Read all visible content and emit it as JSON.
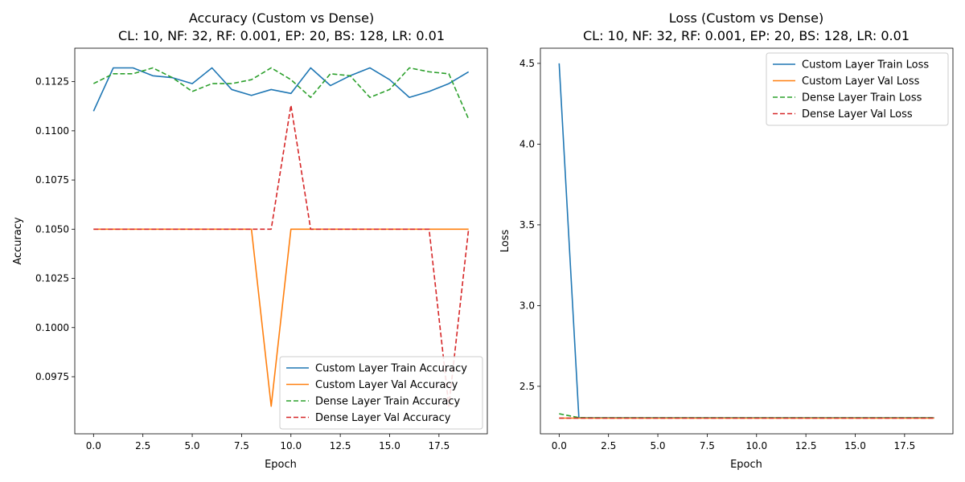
{
  "charts": [
    {
      "title_line1": "Accuracy (Custom vs Dense)",
      "title_line2": "CL: 10, NF: 32, RF: 0.001, EP: 20, BS: 128, LR: 0.01",
      "xlabel": "Epoch",
      "ylabel": "Accuracy"
    },
    {
      "title_line1": "Loss (Custom vs Dense)",
      "title_line2": "CL: 10, NF: 32, RF: 0.001, EP: 20, BS: 128, LR: 0.01",
      "xlabel": "Epoch",
      "ylabel": "Loss"
    }
  ],
  "chart_data": [
    {
      "type": "line",
      "title": "Accuracy (Custom vs Dense)\nCL: 10, NF: 32, RF: 0.001, EP: 20, BS: 128, LR: 0.01",
      "xlabel": "Epoch",
      "ylabel": "Accuracy",
      "xlim": [
        -0.95,
        19.95
      ],
      "ylim": [
        0.0946,
        0.1142
      ],
      "xticks": [
        0.0,
        2.5,
        5.0,
        7.5,
        10.0,
        12.5,
        15.0,
        17.5
      ],
      "xtick_labels": [
        "0.0",
        "2.5",
        "5.0",
        "7.5",
        "10.0",
        "12.5",
        "15.0",
        "17.5"
      ],
      "yticks": [
        0.0975,
        0.1,
        0.1025,
        0.105,
        0.1075,
        0.11,
        0.1125
      ],
      "ytick_labels": [
        "0.0975",
        "0.1000",
        "0.1025",
        "0.1050",
        "0.1075",
        "0.1100",
        "0.1125"
      ],
      "grid": false,
      "legend_position": "lower right",
      "x": [
        0,
        1,
        2,
        3,
        4,
        5,
        6,
        7,
        8,
        9,
        10,
        11,
        12,
        13,
        14,
        15,
        16,
        17,
        18,
        19
      ],
      "series": [
        {
          "name": "Custom Layer Train Accuracy",
          "color": "#1f77b4",
          "dash": "solid",
          "values": [
            0.111,
            0.1132,
            0.1132,
            0.1128,
            0.1127,
            0.1124,
            0.1132,
            0.1121,
            0.1118,
            0.1121,
            0.1119,
            0.1132,
            0.1123,
            0.1128,
            0.1132,
            0.1126,
            0.1117,
            0.112,
            0.1124,
            0.113
          ]
        },
        {
          "name": "Custom Layer Val Accuracy",
          "color": "#ff7f0e",
          "dash": "solid",
          "values": [
            0.105,
            0.105,
            0.105,
            0.105,
            0.105,
            0.105,
            0.105,
            0.105,
            0.105,
            0.096,
            0.105,
            0.105,
            0.105,
            0.105,
            0.105,
            0.105,
            0.105,
            0.105,
            0.105,
            0.105
          ]
        },
        {
          "name": "Dense Layer Train Accuracy",
          "color": "#2ca02c",
          "dash": "dashed",
          "values": [
            0.1124,
            0.1129,
            0.1129,
            0.1132,
            0.1127,
            0.112,
            0.1124,
            0.1124,
            0.1126,
            0.1132,
            0.1126,
            0.1117,
            0.1129,
            0.1128,
            0.1117,
            0.1121,
            0.1132,
            0.113,
            0.1129,
            0.1106
          ]
        },
        {
          "name": "Dense Layer Val Accuracy",
          "color": "#d62728",
          "dash": "dashed",
          "values": [
            0.105,
            0.105,
            0.105,
            0.105,
            0.105,
            0.105,
            0.105,
            0.105,
            0.105,
            0.105,
            0.1113,
            0.105,
            0.105,
            0.105,
            0.105,
            0.105,
            0.105,
            0.105,
            0.096,
            0.105
          ]
        }
      ]
    },
    {
      "type": "line",
      "title": "Loss (Custom vs Dense)\nCL: 10, NF: 32, RF: 0.001, EP: 20, BS: 128, LR: 0.01",
      "xlabel": "Epoch",
      "ylabel": "Loss",
      "xlim": [
        -0.95,
        19.95
      ],
      "ylim": [
        2.206,
        4.594
      ],
      "xticks": [
        0.0,
        2.5,
        5.0,
        7.5,
        10.0,
        12.5,
        15.0,
        17.5
      ],
      "xtick_labels": [
        "0.0",
        "2.5",
        "5.0",
        "7.5",
        "10.0",
        "12.5",
        "15.0",
        "17.5"
      ],
      "yticks": [
        2.5,
        3.0,
        3.5,
        4.0,
        4.5
      ],
      "ytick_labels": [
        "2.5",
        "3.0",
        "3.5",
        "4.0",
        "4.5"
      ],
      "grid": false,
      "legend_position": "upper right",
      "x": [
        0,
        1,
        2,
        3,
        4,
        5,
        6,
        7,
        8,
        9,
        10,
        11,
        12,
        13,
        14,
        15,
        16,
        17,
        18,
        19
      ],
      "series": [
        {
          "name": "Custom Layer Train Loss",
          "color": "#1f77b4",
          "dash": "solid",
          "values": [
            4.5,
            2.305,
            2.305,
            2.305,
            2.305,
            2.305,
            2.305,
            2.305,
            2.305,
            2.305,
            2.305,
            2.305,
            2.305,
            2.305,
            2.305,
            2.305,
            2.305,
            2.305,
            2.305,
            2.305
          ]
        },
        {
          "name": "Custom Layer Val Loss",
          "color": "#ff7f0e",
          "dash": "solid",
          "values": [
            2.303,
            2.303,
            2.303,
            2.303,
            2.303,
            2.303,
            2.303,
            2.303,
            2.303,
            2.303,
            2.303,
            2.303,
            2.303,
            2.303,
            2.303,
            2.303,
            2.303,
            2.303,
            2.303,
            2.303
          ]
        },
        {
          "name": "Dense Layer Train Loss",
          "color": "#2ca02c",
          "dash": "dashed",
          "values": [
            2.33,
            2.306,
            2.305,
            2.305,
            2.305,
            2.305,
            2.305,
            2.305,
            2.305,
            2.305,
            2.305,
            2.305,
            2.305,
            2.305,
            2.305,
            2.305,
            2.305,
            2.305,
            2.305,
            2.305
          ]
        },
        {
          "name": "Dense Layer Val Loss",
          "color": "#d62728",
          "dash": "dashed",
          "values": [
            2.303,
            2.303,
            2.303,
            2.303,
            2.303,
            2.303,
            2.303,
            2.303,
            2.303,
            2.303,
            2.303,
            2.303,
            2.303,
            2.303,
            2.303,
            2.303,
            2.303,
            2.303,
            2.303,
            2.303
          ]
        }
      ]
    }
  ]
}
